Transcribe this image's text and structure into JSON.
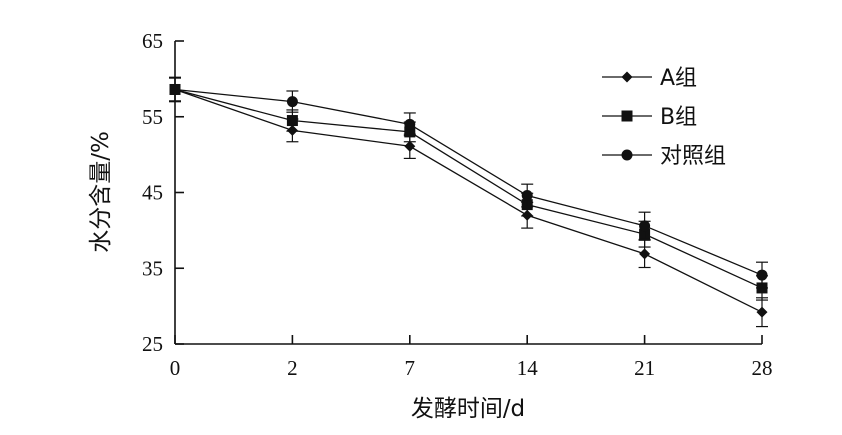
{
  "chart_data": {
    "type": "line",
    "title": "",
    "xlabel": "发酵时间/d",
    "ylabel": "水分含量/%",
    "categories": [
      "0",
      "2",
      "7",
      "14",
      "21",
      "28"
    ],
    "ylim": [
      25,
      65
    ],
    "yticks": [
      25,
      35,
      45,
      55,
      65
    ],
    "grid": false,
    "legend_position": "top-right",
    "series": [
      {
        "name": "A组",
        "marker": "diamond",
        "values": [
          58.6,
          53.2,
          51.1,
          42.0,
          36.9,
          29.2
        ],
        "errors": [
          1.6,
          1.5,
          1.6,
          1.7,
          1.8,
          1.9
        ]
      },
      {
        "name": "B组",
        "marker": "square",
        "values": [
          58.6,
          54.5,
          53.0,
          43.4,
          39.5,
          32.4
        ],
        "errors": [
          1.6,
          1.4,
          1.3,
          1.5,
          1.7,
          1.6
        ]
      },
      {
        "name": "对照组",
        "marker": "circle",
        "values": [
          58.6,
          57.0,
          54.0,
          44.6,
          40.6,
          34.1
        ],
        "errors": [
          1.5,
          1.4,
          1.5,
          1.5,
          1.8,
          1.7
        ]
      }
    ]
  }
}
